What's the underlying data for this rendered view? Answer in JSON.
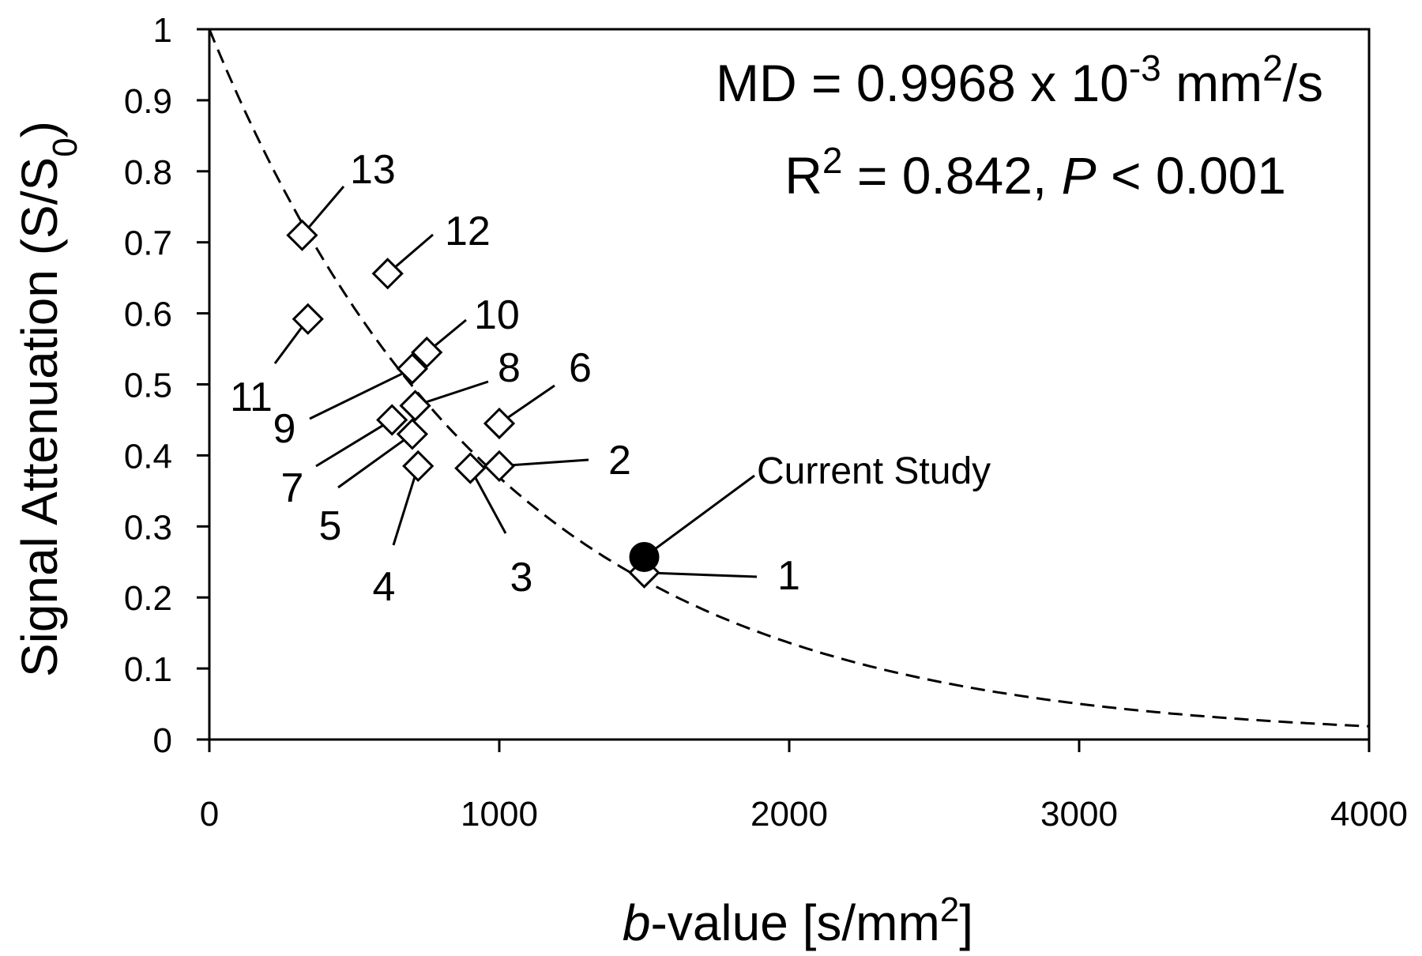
{
  "chart_data": {
    "type": "scatter",
    "xlabel": {
      "prefix_italic": "b",
      "rest": "-value [s/mm",
      "sup": "2",
      "suffix": "]"
    },
    "ylabel": {
      "italic_word": "Signal Attenuation",
      "rest": " (S/S",
      "sub": "0",
      "suffix": ")"
    },
    "xlim": [
      0,
      4000
    ],
    "ylim": [
      0,
      1
    ],
    "x_ticks": [
      0,
      1000,
      2000,
      3000,
      4000
    ],
    "x_tick_labels": [
      "0",
      "1000",
      "2000",
      "3000",
      "4000"
    ],
    "y_ticks": [
      0,
      0.1,
      0.2,
      0.3,
      0.4,
      0.5,
      0.6,
      0.7,
      0.8,
      0.9,
      1
    ],
    "y_tick_labels": [
      "0",
      "0.1",
      "0.2",
      "0.3",
      "0.4",
      "0.5",
      "0.6",
      "0.7",
      "0.8",
      "0.9",
      "1"
    ],
    "grid": false,
    "annotation": {
      "line1": {
        "a": "MD = 0.9968 x 10",
        "sup": "-3",
        "b": " mm",
        "sup2": "2",
        "c": "/s"
      },
      "line2": {
        "a": "R",
        "sup": "2",
        "b": " = 0.842, ",
        "italic": "P",
        "c": " < 0.001"
      }
    },
    "fit_curve": {
      "style": "dashed",
      "model": "exp(-b*MD)",
      "md": 0.0009968
    },
    "points": [
      {
        "label": "1",
        "x": 1500,
        "y": 0.235
      },
      {
        "label": "2",
        "x": 1000,
        "y": 0.385
      },
      {
        "label": "3",
        "x": 900,
        "y": 0.382
      },
      {
        "label": "4",
        "x": 720,
        "y": 0.385
      },
      {
        "label": "5",
        "x": 700,
        "y": 0.43
      },
      {
        "label": "6",
        "x": 1000,
        "y": 0.445
      },
      {
        "label": "7",
        "x": 630,
        "y": 0.45
      },
      {
        "label": "8",
        "x": 710,
        "y": 0.47
      },
      {
        "label": "9",
        "x": 700,
        "y": 0.522
      },
      {
        "label": "10",
        "x": 750,
        "y": 0.545
      },
      {
        "label": "11",
        "x": 340,
        "y": 0.592
      },
      {
        "label": "12",
        "x": 615,
        "y": 0.656
      },
      {
        "label": "13",
        "x": 320,
        "y": 0.71
      }
    ],
    "current_study": {
      "label": "Current Study",
      "x": 1500,
      "y": 0.257
    }
  }
}
